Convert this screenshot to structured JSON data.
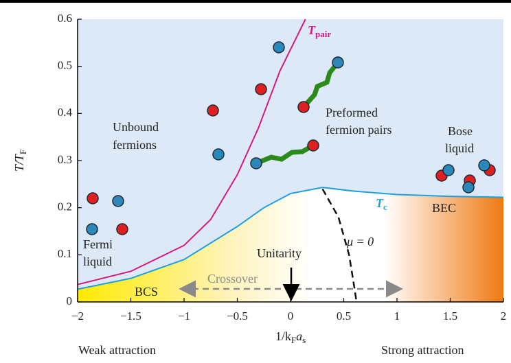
{
  "chart_data": {
    "type": "line",
    "y_label": {
      "main": "T/T",
      "sub": "F"
    },
    "x_label": [
      "1/k",
      "F",
      "a",
      "s"
    ],
    "xlim": [
      -2,
      2
    ],
    "ylim": [
      0,
      0.6
    ],
    "xticks": [
      {
        "value": -2,
        "label": "−2"
      },
      {
        "value": -1.5,
        "label": "−1.5"
      },
      {
        "value": -1,
        "label": "−1"
      },
      {
        "value": -0.5,
        "label": "−0.5"
      },
      0,
      0.5,
      1,
      1.5,
      2
    ],
    "yticks": [
      0,
      0.1,
      0.2,
      0.3,
      0.4,
      0.5,
      0.6
    ],
    "grid": false,
    "series": [
      {
        "name": "T",
        "name_sub": "pair",
        "color": "#d6197f",
        "dashed": false,
        "x": [
          -2,
          -1.5,
          -1,
          -0.75,
          -0.5,
          -0.3,
          -0.1,
          0.14
        ],
        "values": [
          0.037,
          0.065,
          0.12,
          0.175,
          0.27,
          0.37,
          0.49,
          0.6
        ]
      },
      {
        "name": "T",
        "name_sub": "c",
        "color": "#1ea0e0",
        "dashed": false,
        "x": [
          -2,
          -1.5,
          -1,
          -0.5,
          -0.25,
          0,
          0.3,
          0.6,
          1,
          1.5,
          2
        ],
        "values": [
          0.027,
          0.05,
          0.09,
          0.16,
          0.2,
          0.23,
          0.243,
          0.235,
          0.228,
          0.224,
          0.222
        ]
      },
      {
        "name": "μ = 0",
        "color": "#111111",
        "dashed": true,
        "x": [
          0.3,
          0.45,
          0.55,
          0.6,
          0.62
        ],
        "values": [
          0.24,
          0.18,
          0.1,
          0.03,
          0
        ]
      }
    ],
    "annotations": {
      "unbound": [
        "Unbound",
        "fermions"
      ],
      "preformed": [
        "Preformed",
        "fermion pairs"
      ],
      "bose": [
        "Bose",
        "liquid"
      ],
      "fermi": [
        "Fermi",
        "liquid"
      ],
      "bec": "BEC",
      "bcs": "BCS",
      "crossover": "Crossover",
      "unitarity": "Unitarity",
      "weak": "Weak attraction",
      "strong": "Strong attraction"
    }
  }
}
